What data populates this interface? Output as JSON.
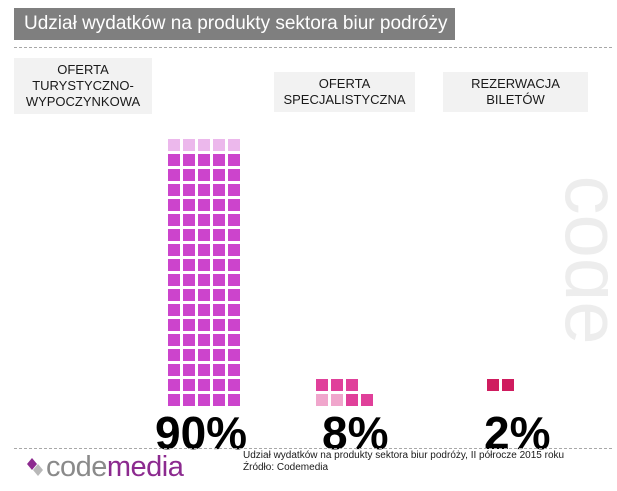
{
  "title": "Udział wydatków na produkty sektora biur podróży",
  "chart_data": {
    "type": "waffle",
    "unit_per_square": 1,
    "categories": [
      "OFERTA TURYSTYCZNO- WYPOCZYNKOWA",
      "OFERTA SPECJALISTYCZNA",
      "REZERWACJA BILETÓW"
    ],
    "values": [
      90,
      8,
      2
    ],
    "value_labels": [
      "90%",
      "8%",
      "2%"
    ],
    "colors": [
      "#cc44cc",
      "#e0409a",
      "#cf1c5f"
    ],
    "colors_light": [
      "#ecb8ec",
      "#f0a6cc",
      "#cf1c5f"
    ],
    "label_colors": [
      "#cc44cc",
      "#e860ae",
      "#cf1c5f"
    ]
  },
  "category_lines": [
    [
      "OFERTA",
      "TURYSTYCZNO-",
      "WYPOCZYNKOWA"
    ],
    [
      "OFERTA",
      "SPECJALISTYCZNA"
    ],
    [
      "REZERWACJA",
      "BILETÓW"
    ]
  ],
  "footer": {
    "note_line1": "Udział wydatków na produkty sektora biur podróży, II półrocze 2015 roku",
    "note_line2": "Źródło: Codemedia",
    "logo_text_part1": "code",
    "logo_text_part2": "media",
    "watermark_text": "code"
  }
}
